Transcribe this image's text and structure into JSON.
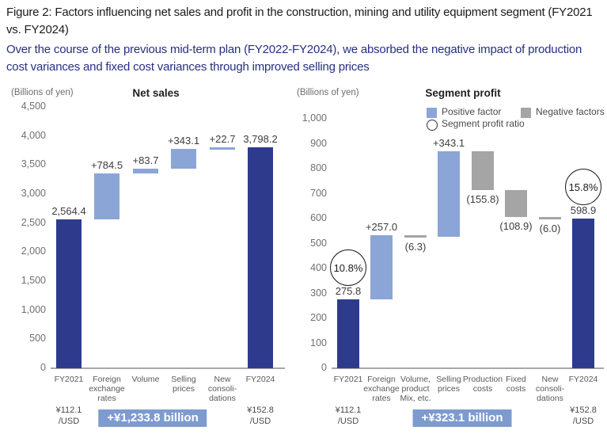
{
  "figure": {
    "title": "Figure 2: Factors influencing net sales and profit in the construction, mining and utility equipment segment (FY2021 vs. FY2024)",
    "subtitle": "Over the course of the previous mid-term plan (FY2022-FY2024), we absorbed the negative impact of production cost variances and fixed cost variances through improved selling prices"
  },
  "colors": {
    "dark_bar": "#2e3b8d",
    "positive_bar": "#8ba5d7",
    "negative_bar": "#a5a5a5",
    "badge_bg": "#7e9bd0",
    "subtitle_text": "#27307f"
  },
  "chart_data": [
    {
      "type": "bar",
      "subtype": "waterfall",
      "title": "Net sales",
      "unit_label": "(Billions of yen)",
      "ylim": [
        0,
        4500
      ],
      "ytick_step": 500,
      "grid": false,
      "ytick_labels": [
        "4,500",
        "4,000",
        "3,500",
        "3,000",
        "2,500",
        "2,000",
        "1,500",
        "1,000",
        "500",
        "0"
      ],
      "bars": [
        {
          "category": [
            "FY2021"
          ],
          "label": "2,564.4",
          "start": 0,
          "end": 2564.4,
          "kind": "total",
          "label_pos": "above"
        },
        {
          "category": [
            "Foreign",
            "exchange",
            "rates"
          ],
          "label": "+784.5",
          "start": 2564.4,
          "end": 3348.9,
          "kind": "positive",
          "label_pos": "above"
        },
        {
          "category": [
            "Volume"
          ],
          "label": "+83.7",
          "start": 3348.9,
          "end": 3432.6,
          "kind": "positive",
          "label_pos": "above"
        },
        {
          "category": [
            "Selling",
            "prices"
          ],
          "label": "+343.1",
          "start": 3432.6,
          "end": 3775.7,
          "kind": "positive",
          "label_pos": "above"
        },
        {
          "category": [
            "New",
            "consoli-",
            "dations"
          ],
          "label": "+22.7",
          "start": 3775.7,
          "end": 3798.2,
          "kind": "positive",
          "label_pos": "above"
        },
        {
          "category": [
            "FY2024"
          ],
          "label": "3,798.2",
          "start": 0,
          "end": 3798.2,
          "kind": "total",
          "label_pos": "above"
        }
      ],
      "footnotes": {
        "left_rate": [
          "¥112.1",
          "/USD"
        ],
        "right_rate": [
          "¥152.8",
          "/USD"
        ],
        "badge": "+¥1,233.8 billion"
      }
    },
    {
      "type": "bar",
      "subtype": "waterfall",
      "title": "Segment profit",
      "unit_label": "(Billions of yen)",
      "ylim": [
        0,
        1000
      ],
      "ytick_step": 100,
      "grid": false,
      "ytick_labels": [
        "1,000",
        "900",
        "800",
        "700",
        "600",
        "500",
        "400",
        "300",
        "200",
        "100",
        "0"
      ],
      "legend": [
        {
          "swatch": "square",
          "color_key": "positive_bar",
          "label": "Positive factor"
        },
        {
          "swatch": "square",
          "color_key": "negative_bar",
          "label": "Negative factors"
        },
        {
          "swatch": "circle",
          "label": "Segment profit ratio"
        }
      ],
      "bars": [
        {
          "category": [
            "FY2021"
          ],
          "label": "275.8",
          "start": 0,
          "end": 275.8,
          "kind": "total",
          "label_pos": "above",
          "ratio": "10.8%"
        },
        {
          "category": [
            "Foreign",
            "exchange",
            "rates"
          ],
          "label": "+257.0",
          "start": 275.8,
          "end": 532.8,
          "kind": "positive",
          "label_pos": "above"
        },
        {
          "category": [
            "Volume,",
            "product",
            "Mix, etc."
          ],
          "label": "(6.3)",
          "start": 532.8,
          "end": 526.5,
          "kind": "negative",
          "label_pos": "below"
        },
        {
          "category": [
            "Selling",
            "prices"
          ],
          "label": "+343.1",
          "start": 526.5,
          "end": 869.6,
          "kind": "positive",
          "label_pos": "above"
        },
        {
          "category": [
            "Production",
            "costs"
          ],
          "label": "(155.8)",
          "start": 869.6,
          "end": 713.8,
          "kind": "negative",
          "label_pos": "below"
        },
        {
          "category": [
            "Fixed",
            "costs"
          ],
          "label": "(108.9)",
          "start": 713.8,
          "end": 604.9,
          "kind": "negative",
          "label_pos": "below"
        },
        {
          "category": [
            "New",
            "consoli-",
            "dations"
          ],
          "label": "(6.0)",
          "start": 604.9,
          "end": 598.9,
          "kind": "negative",
          "label_pos": "below"
        },
        {
          "category": [
            "FY2024"
          ],
          "label": "598.9",
          "start": 0,
          "end": 598.9,
          "kind": "total",
          "label_pos": "above",
          "ratio": "15.8%"
        }
      ],
      "footnotes": {
        "left_rate": [
          "¥112.1",
          "/USD"
        ],
        "right_rate": [
          "¥152.8",
          "/USD"
        ],
        "badge": "+¥323.1 billion"
      }
    }
  ]
}
